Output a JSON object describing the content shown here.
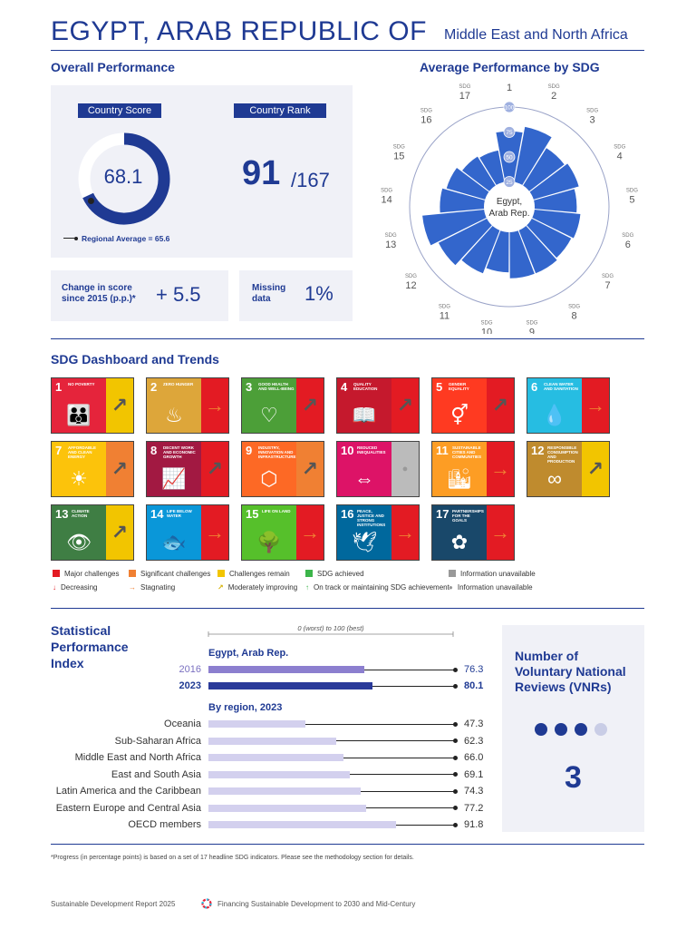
{
  "header": {
    "country": "EGYPT, ARAB REPUBLIC OF",
    "region": "Middle East and North Africa"
  },
  "overall": {
    "heading": "Overall Performance",
    "score_label": "Country Score",
    "score": "68.1",
    "score_value": 68.1,
    "regional_average": "Regional Average = 65.6",
    "regional_average_value": 65.6,
    "rank_label": "Country Rank",
    "rank": "91",
    "rank_total": "/167",
    "change_label_1": "Change in score",
    "change_label_2": "since 2015 (p.p.)*",
    "change_value": "+ 5.5",
    "missing_label_1": "Missing",
    "missing_label_2": "data",
    "missing_value": "1%"
  },
  "radial": {
    "heading": "Average Performance by SDG",
    "center_1": "Egypt,",
    "center_2": "Arab Rep.",
    "sdg_word": "SDG",
    "scale_labels": [
      "25",
      "50",
      "75",
      "100"
    ],
    "values": [
      76,
      82,
      70,
      73,
      68,
      72,
      70,
      72,
      72,
      66,
      72,
      80,
      88,
      70,
      66,
      60,
      58
    ],
    "color": "#3366cc"
  },
  "dashboard": {
    "heading": "SDG Dashboard and Trends",
    "goals": [
      {
        "num": "1",
        "name": "NO POVERTY",
        "color": "#e5243b",
        "icon": "family-icon",
        "glyph": "👪",
        "status": "#f2c500",
        "trend": "↗",
        "trend_color": "#555"
      },
      {
        "num": "2",
        "name": "ZERO HUNGER",
        "color": "#dda63a",
        "icon": "bowl-icon",
        "glyph": "♨",
        "status": "#e31b23",
        "trend": "→",
        "trend_color": "#f08033"
      },
      {
        "num": "3",
        "name": "GOOD HEALTH AND WELL-BEING",
        "color": "#4c9f38",
        "icon": "heartbeat-icon",
        "glyph": "♡",
        "status": "#e31b23",
        "trend": "↗",
        "trend_color": "#555"
      },
      {
        "num": "4",
        "name": "QUALITY EDUCATION",
        "color": "#c5192d",
        "icon": "book-icon",
        "glyph": "📖",
        "status": "#e31b23",
        "trend": "↗",
        "trend_color": "#555"
      },
      {
        "num": "5",
        "name": "GENDER EQUALITY",
        "color": "#ff3a21",
        "icon": "gender-icon",
        "glyph": "⚥",
        "status": "#e31b23",
        "trend": "↗",
        "trend_color": "#555"
      },
      {
        "num": "6",
        "name": "CLEAN WATER AND SANITATION",
        "color": "#26bde2",
        "icon": "water-icon",
        "glyph": "💧",
        "status": "#e31b23",
        "trend": "→",
        "trend_color": "#f08033"
      },
      {
        "num": "7",
        "name": "AFFORDABLE AND CLEAN ENERGY",
        "color": "#fcc30b",
        "icon": "sun-icon",
        "glyph": "☀",
        "status": "#f08033",
        "trend": "↗",
        "trend_color": "#555"
      },
      {
        "num": "8",
        "name": "DECENT WORK AND ECONOMIC GROWTH",
        "color": "#a21942",
        "icon": "growth-icon",
        "glyph": "📈",
        "status": "#e31b23",
        "trend": "↗",
        "trend_color": "#555"
      },
      {
        "num": "9",
        "name": "INDUSTRY, INNOVATION AND INFRASTRUCTURE",
        "color": "#fd6925",
        "icon": "cubes-icon",
        "glyph": "⬡",
        "status": "#f08033",
        "trend": "↗",
        "trend_color": "#555"
      },
      {
        "num": "10",
        "name": "REDUCED INEQUALITIES",
        "color": "#dd1367",
        "icon": "equality-icon",
        "glyph": "⇔",
        "status": "#bbbbbb",
        "trend": "●",
        "trend_color": "#999"
      },
      {
        "num": "11",
        "name": "SUSTAINABLE CITIES AND COMMUNITIES",
        "color": "#fd9d24",
        "icon": "city-icon",
        "glyph": "🏙",
        "status": "#e31b23",
        "trend": "→",
        "trend_color": "#f08033"
      },
      {
        "num": "12",
        "name": "RESPONSIBLE CONSUMPTION AND PRODUCTION",
        "color": "#bf8b2e",
        "icon": "infinity-icon",
        "glyph": "∞",
        "status": "#f2c500",
        "trend": "↗",
        "trend_color": "#555"
      },
      {
        "num": "13",
        "name": "CLIMATE ACTION",
        "color": "#3f7e44",
        "icon": "eye-globe-icon",
        "glyph": "👁",
        "status": "#f2c500",
        "trend": "↗",
        "trend_color": "#555"
      },
      {
        "num": "14",
        "name": "LIFE BELOW WATER",
        "color": "#0a97d9",
        "icon": "fish-icon",
        "glyph": "🐟",
        "status": "#e31b23",
        "trend": "→",
        "trend_color": "#f08033"
      },
      {
        "num": "15",
        "name": "LIFE ON LAND",
        "color": "#56c02b",
        "icon": "tree-icon",
        "glyph": "🌳",
        "status": "#e31b23",
        "trend": "→",
        "trend_color": "#f08033"
      },
      {
        "num": "16",
        "name": "PEACE, JUSTICE AND STRONG INSTITUTIONS",
        "color": "#00689d",
        "icon": "dove-icon",
        "glyph": "🕊",
        "status": "#e31b23",
        "trend": "→",
        "trend_color": "#f08033"
      },
      {
        "num": "17",
        "name": "PARTNERSHIPS FOR THE GOALS",
        "color": "#19486a",
        "icon": "rings-icon",
        "glyph": "✿",
        "status": "#e31b23",
        "trend": "→",
        "trend_color": "#f08033"
      }
    ],
    "legend": {
      "major": "Major challenges",
      "significant": "Significant challenges",
      "remain": "Challenges remain",
      "achieved": "SDG achieved",
      "unavailable": "Information unavailable",
      "decreasing": "Decreasing",
      "stagnating": "Stagnating",
      "moderately": "Moderately improving",
      "on_track": "On track or maintaining SDG achievement",
      "unavailable2": "Information unavailable"
    }
  },
  "spi": {
    "heading_1": "Statistical",
    "heading_2": "Performance",
    "heading_3": "Index",
    "scale_label": "0 (worst) to 100 (best)",
    "country_label": "Egypt, Arab Rep.",
    "years": [
      {
        "year": "2016",
        "value": "76.3",
        "v": 76.3,
        "color": "#8c7fcf"
      },
      {
        "year": "2023",
        "value": "80.1",
        "v": 80.1,
        "color": "#2a3a9a"
      }
    ],
    "region_label": "By region, 2023",
    "regions": [
      {
        "name": "Oceania",
        "value": "47.3",
        "v": 47.3
      },
      {
        "name": "Sub-Saharan Africa",
        "value": "62.3",
        "v": 62.3
      },
      {
        "name": "Middle East and North Africa",
        "value": "66.0",
        "v": 66.0
      },
      {
        "name": "East and South Asia",
        "value": "69.1",
        "v": 69.1
      },
      {
        "name": "Latin America and the Caribbean",
        "value": "74.3",
        "v": 74.3
      },
      {
        "name": "Eastern Europe and Central Asia",
        "value": "77.2",
        "v": 77.2
      },
      {
        "name": "OECD members",
        "value": "91.8",
        "v": 91.8
      }
    ]
  },
  "vnr": {
    "heading_1": "Number of",
    "heading_2": "Voluntary National",
    "heading_3": "Reviews (VNRs)",
    "count": "3",
    "count_value": 3,
    "dots_total": 4
  },
  "footnote": "*Progress (in percentage points) is based on a set of 17 headline SDG indicators. Please see the methodology section for details.",
  "footer": {
    "left": "Sustainable Development Report 2025",
    "right": "Financing Sustainable Development to 2030 and Mid-Century"
  }
}
